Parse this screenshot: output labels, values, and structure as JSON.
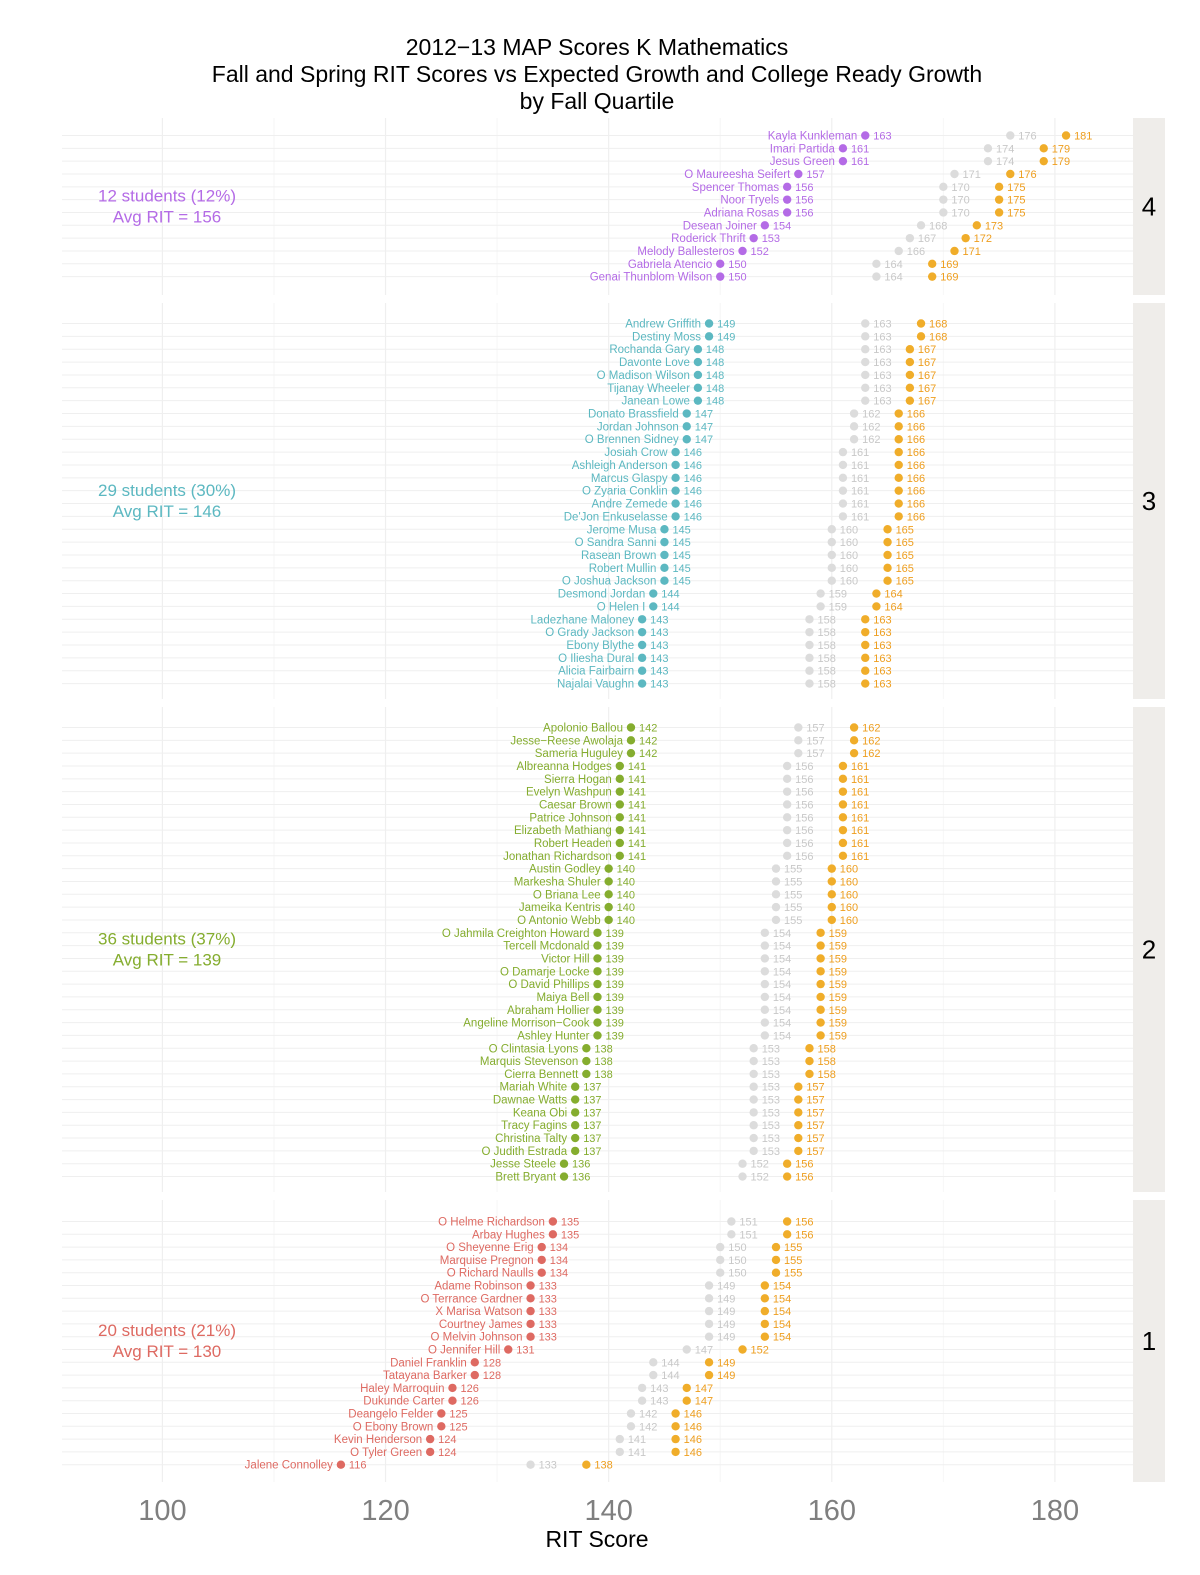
{
  "chart_data": {
    "type": "scatter",
    "title": [
      "2012−13 MAP Scores K Mathematics",
      "Fall and Spring RIT Scores vs Expected Growth and College Ready Growth",
      "by Fall Quartile"
    ],
    "xlabel": "RIT Score",
    "ylabel": "",
    "xlim": [
      91,
      187
    ],
    "xticks": [
      100,
      120,
      140,
      160,
      180
    ],
    "grid": true,
    "colors": {
      "quartile_1": "#DE6A62",
      "quartile_2": "#85AD2F",
      "quartile_3": "#5CB8C1",
      "quartile_4": "#B46BE6",
      "expected": "#DCDCDC",
      "expected_text": "#C8C8C8",
      "college_ready": "#F0AD2A",
      "college_ready_text": "#EE9E1E",
      "strip_bg": "#EFEDEA",
      "panel_grid": "#EFEFEF"
    },
    "series_meaning": {
      "fall": "Fall RIT score (quartile color)",
      "expected": "Expected growth target (grey)",
      "college_ready": "College ready growth target (orange)"
    },
    "panels": [
      {
        "quartile": "4",
        "summary": [
          "12 students (12%)",
          "Avg RIT =  156"
        ],
        "students": [
          {
            "name": "Kayla Kunkleman",
            "fall": 163,
            "expected": 176,
            "college_ready": 181
          },
          {
            "name": "Imari Partida",
            "fall": 161,
            "expected": 174,
            "college_ready": 179
          },
          {
            "name": "Jesus Green",
            "fall": 161,
            "expected": 174,
            "college_ready": 179
          },
          {
            "name": "O Maureesha Seifert",
            "fall": 157,
            "expected": 171,
            "college_ready": 176
          },
          {
            "name": "Spencer Thomas",
            "fall": 156,
            "expected": 170,
            "college_ready": 175
          },
          {
            "name": "Noor Tryels",
            "fall": 156,
            "expected": 170,
            "college_ready": 175
          },
          {
            "name": "Adriana Rosas",
            "fall": 156,
            "expected": 170,
            "college_ready": 175
          },
          {
            "name": "Desean Joiner",
            "fall": 154,
            "expected": 168,
            "college_ready": 173
          },
          {
            "name": "Roderick Thrift",
            "fall": 153,
            "expected": 167,
            "college_ready": 172
          },
          {
            "name": "Melody Ballesteros",
            "fall": 152,
            "expected": 166,
            "college_ready": 171
          },
          {
            "name": "Gabriela Atencio",
            "fall": 150,
            "expected": 164,
            "college_ready": 169
          },
          {
            "name": "Genai Thunblom Wilson",
            "fall": 150,
            "expected": 164,
            "college_ready": 169
          }
        ]
      },
      {
        "quartile": "3",
        "summary": [
          "29 students (30%)",
          "Avg RIT =  146"
        ],
        "students": [
          {
            "name": "Andrew Griffith",
            "fall": 149,
            "expected": 163,
            "college_ready": 168
          },
          {
            "name": "Destiny Moss",
            "fall": 149,
            "expected": 163,
            "college_ready": 168
          },
          {
            "name": "Rochanda Gary",
            "fall": 148,
            "expected": 163,
            "college_ready": 167
          },
          {
            "name": "Davonte Love",
            "fall": 148,
            "expected": 163,
            "college_ready": 167
          },
          {
            "name": "O Madison Wilson",
            "fall": 148,
            "expected": 163,
            "college_ready": 167
          },
          {
            "name": "Tijanay Wheeler",
            "fall": 148,
            "expected": 163,
            "college_ready": 167
          },
          {
            "name": "Janean Lowe",
            "fall": 148,
            "expected": 163,
            "college_ready": 167
          },
          {
            "name": "Donato Brassfield",
            "fall": 147,
            "expected": 162,
            "college_ready": 166
          },
          {
            "name": "Jordan Johnson",
            "fall": 147,
            "expected": 162,
            "college_ready": 166
          },
          {
            "name": "O Brennen Sidney",
            "fall": 147,
            "expected": 162,
            "college_ready": 166
          },
          {
            "name": "Josiah Crow",
            "fall": 146,
            "expected": 161,
            "college_ready": 166
          },
          {
            "name": "Ashleigh Anderson",
            "fall": 146,
            "expected": 161,
            "college_ready": 166
          },
          {
            "name": "Marcus Glaspy",
            "fall": 146,
            "expected": 161,
            "college_ready": 166
          },
          {
            "name": "O Zyaria Conklin",
            "fall": 146,
            "expected": 161,
            "college_ready": 166
          },
          {
            "name": "Andre Zemede",
            "fall": 146,
            "expected": 161,
            "college_ready": 166
          },
          {
            "name": "De'Jon Enkuselasse",
            "fall": 146,
            "expected": 161,
            "college_ready": 166
          },
          {
            "name": "Jerome Musa",
            "fall": 145,
            "expected": 160,
            "college_ready": 165
          },
          {
            "name": "O Sandra Sanni",
            "fall": 145,
            "expected": 160,
            "college_ready": 165
          },
          {
            "name": "Rasean Brown",
            "fall": 145,
            "expected": 160,
            "college_ready": 165
          },
          {
            "name": "Robert Mullin",
            "fall": 145,
            "expected": 160,
            "college_ready": 165
          },
          {
            "name": "O Joshua Jackson",
            "fall": 145,
            "expected": 160,
            "college_ready": 165
          },
          {
            "name": "Desmond Jordan",
            "fall": 144,
            "expected": 159,
            "college_ready": 164
          },
          {
            "name": "O Helen I",
            "fall": 144,
            "expected": 159,
            "college_ready": 164
          },
          {
            "name": "Ladezhane Maloney",
            "fall": 143,
            "expected": 158,
            "college_ready": 163
          },
          {
            "name": "O Grady Jackson",
            "fall": 143,
            "expected": 158,
            "college_ready": 163
          },
          {
            "name": "Ebony Blythe",
            "fall": 143,
            "expected": 158,
            "college_ready": 163
          },
          {
            "name": "O Iliesha Dural",
            "fall": 143,
            "expected": 158,
            "college_ready": 163
          },
          {
            "name": "Alicia Fairbairn",
            "fall": 143,
            "expected": 158,
            "college_ready": 163
          },
          {
            "name": "Najalai Vaughn",
            "fall": 143,
            "expected": 158,
            "college_ready": 163
          }
        ]
      },
      {
        "quartile": "2",
        "summary": [
          "36 students (37%)",
          "Avg RIT =  139"
        ],
        "students": [
          {
            "name": "Apolonio Ballou",
            "fall": 142,
            "expected": 157,
            "college_ready": 162
          },
          {
            "name": "Jesse−Reese Awolaja",
            "fall": 142,
            "expected": 157,
            "college_ready": 162
          },
          {
            "name": "Sameria Huguley",
            "fall": 142,
            "expected": 157,
            "college_ready": 162
          },
          {
            "name": "Albreanna Hodges",
            "fall": 141,
            "expected": 156,
            "college_ready": 161
          },
          {
            "name": "Sierra Hogan",
            "fall": 141,
            "expected": 156,
            "college_ready": 161
          },
          {
            "name": "Evelyn Washpun",
            "fall": 141,
            "expected": 156,
            "college_ready": 161
          },
          {
            "name": "Caesar Brown",
            "fall": 141,
            "expected": 156,
            "college_ready": 161
          },
          {
            "name": "Patrice Johnson",
            "fall": 141,
            "expected": 156,
            "college_ready": 161
          },
          {
            "name": "Elizabeth Mathiang",
            "fall": 141,
            "expected": 156,
            "college_ready": 161
          },
          {
            "name": "Robert Headen",
            "fall": 141,
            "expected": 156,
            "college_ready": 161
          },
          {
            "name": "Jonathan Richardson",
            "fall": 141,
            "expected": 156,
            "college_ready": 161
          },
          {
            "name": "Austin Godley",
            "fall": 140,
            "expected": 155,
            "college_ready": 160
          },
          {
            "name": "Markesha Shuler",
            "fall": 140,
            "expected": 155,
            "college_ready": 160
          },
          {
            "name": "O Briana Lee",
            "fall": 140,
            "expected": 155,
            "college_ready": 160
          },
          {
            "name": "Jameika Kentris",
            "fall": 140,
            "expected": 155,
            "college_ready": 160
          },
          {
            "name": "O Antonio Webb",
            "fall": 140,
            "expected": 155,
            "college_ready": 160
          },
          {
            "name": "O Jahmila Creighton Howard",
            "fall": 139,
            "expected": 154,
            "college_ready": 159
          },
          {
            "name": "Tercell Mcdonald",
            "fall": 139,
            "expected": 154,
            "college_ready": 159
          },
          {
            "name": "Victor Hill",
            "fall": 139,
            "expected": 154,
            "college_ready": 159
          },
          {
            "name": "O Damarje Locke",
            "fall": 139,
            "expected": 154,
            "college_ready": 159
          },
          {
            "name": "O David Phillips",
            "fall": 139,
            "expected": 154,
            "college_ready": 159
          },
          {
            "name": "Maiya Bell",
            "fall": 139,
            "expected": 154,
            "college_ready": 159
          },
          {
            "name": "Abraham Hollier",
            "fall": 139,
            "expected": 154,
            "college_ready": 159
          },
          {
            "name": "Angeline Morrison−Cook",
            "fall": 139,
            "expected": 154,
            "college_ready": 159
          },
          {
            "name": "Ashley Hunter",
            "fall": 139,
            "expected": 154,
            "college_ready": 159
          },
          {
            "name": "O Clintasia Lyons",
            "fall": 138,
            "expected": 153,
            "college_ready": 158
          },
          {
            "name": "Marquis Stevenson",
            "fall": 138,
            "expected": 153,
            "college_ready": 158
          },
          {
            "name": "Cierra Bennett",
            "fall": 138,
            "expected": 153,
            "college_ready": 158
          },
          {
            "name": "Mariah White",
            "fall": 137,
            "expected": 153,
            "college_ready": 157
          },
          {
            "name": "Dawnae Watts",
            "fall": 137,
            "expected": 153,
            "college_ready": 157
          },
          {
            "name": "Keana Obi",
            "fall": 137,
            "expected": 153,
            "college_ready": 157
          },
          {
            "name": "Tracy Fagins",
            "fall": 137,
            "expected": 153,
            "college_ready": 157
          },
          {
            "name": "Christina Talty",
            "fall": 137,
            "expected": 153,
            "college_ready": 157
          },
          {
            "name": "O Judith Estrada",
            "fall": 137,
            "expected": 153,
            "college_ready": 157
          },
          {
            "name": "Jesse Steele",
            "fall": 136,
            "expected": 152,
            "college_ready": 156
          },
          {
            "name": "Brett Bryant",
            "fall": 136,
            "expected": 152,
            "college_ready": 156
          }
        ]
      },
      {
        "quartile": "1",
        "summary": [
          "20 students (21%)",
          "Avg RIT =  130"
        ],
        "students": [
          {
            "name": "O Helme Richardson",
            "fall": 135,
            "expected": 151,
            "college_ready": 156
          },
          {
            "name": "Arbay Hughes",
            "fall": 135,
            "expected": 151,
            "college_ready": 156
          },
          {
            "name": "O Sheyenne Erig",
            "fall": 134,
            "expected": 150,
            "college_ready": 155
          },
          {
            "name": "Marquise Pregnon",
            "fall": 134,
            "expected": 150,
            "college_ready": 155
          },
          {
            "name": "O Richard Naulls",
            "fall": 134,
            "expected": 150,
            "college_ready": 155
          },
          {
            "name": "Adame Robinson",
            "fall": 133,
            "expected": 149,
            "college_ready": 154
          },
          {
            "name": "O Terrance Gardner",
            "fall": 133,
            "expected": 149,
            "college_ready": 154
          },
          {
            "name": "X Marisa Watson",
            "fall": 133,
            "expected": 149,
            "college_ready": 154
          },
          {
            "name": "Courtney James",
            "fall": 133,
            "expected": 149,
            "college_ready": 154
          },
          {
            "name": "O Melvin Johnson",
            "fall": 133,
            "expected": 149,
            "college_ready": 154
          },
          {
            "name": "O Jennifer Hill",
            "fall": 131,
            "expected": 147,
            "college_ready": 152
          },
          {
            "name": "Daniel Franklin",
            "fall": 128,
            "expected": 144,
            "college_ready": 149
          },
          {
            "name": "Tatayana Barker",
            "fall": 128,
            "expected": 144,
            "college_ready": 149
          },
          {
            "name": "Haley Marroquin",
            "fall": 126,
            "expected": 143,
            "college_ready": 147
          },
          {
            "name": "Dukunde Carter",
            "fall": 126,
            "expected": 143,
            "college_ready": 147
          },
          {
            "name": "Deangelo Felder",
            "fall": 125,
            "expected": 142,
            "college_ready": 146
          },
          {
            "name": "O Ebony Brown",
            "fall": 125,
            "expected": 142,
            "college_ready": 146
          },
          {
            "name": "Kevin Henderson",
            "fall": 124,
            "expected": 141,
            "college_ready": 146
          },
          {
            "name": "O Tyler Green",
            "fall": 124,
            "expected": 141,
            "college_ready": 146
          },
          {
            "name": "Jalene Connolley",
            "fall": 116,
            "expected": 133,
            "college_ready": 138
          }
        ]
      }
    ]
  }
}
